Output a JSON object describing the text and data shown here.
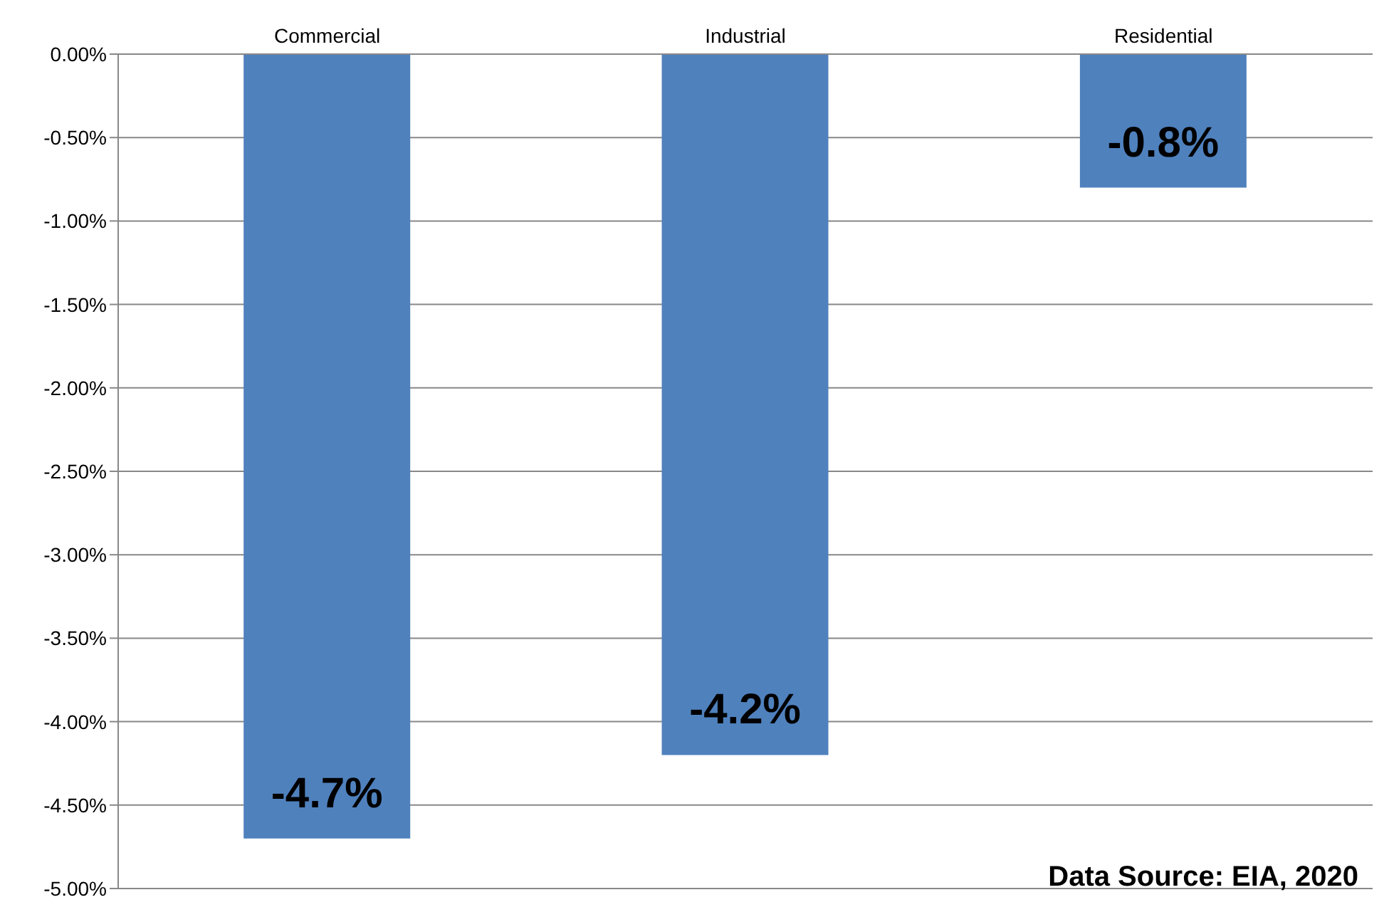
{
  "chart_data": {
    "type": "bar",
    "categories": [
      "Commercial",
      "Industrial",
      "Residential"
    ],
    "series": [
      {
        "color": "#4f81bd",
        "values": [
          -4.7,
          -4.2,
          -0.8
        ],
        "value_labels": [
          "-4.7%",
          "-4.2%",
          "-0.8%"
        ]
      }
    ],
    "ylim": [
      -5,
      0
    ],
    "yticks": [
      {
        "value": 0,
        "label": "0.00%"
      },
      {
        "value": -0.5,
        "label": "-0.50%"
      },
      {
        "value": -1,
        "label": "-1.00%"
      },
      {
        "value": -1.5,
        "label": "-1.50%"
      },
      {
        "value": -2,
        "label": "-2.00%"
      },
      {
        "value": -2.5,
        "label": "-2.50%"
      },
      {
        "value": -3,
        "label": "-3.00%"
      },
      {
        "value": -3.5,
        "label": "-3.50%"
      },
      {
        "value": -4,
        "label": "-4.00%"
      },
      {
        "value": -4.5,
        "label": "-4.50%"
      },
      {
        "value": -5,
        "label": "-5.00%"
      }
    ],
    "grid": "y",
    "legend": false,
    "annotations": [
      "Data Source: EIA, 2020"
    ]
  }
}
